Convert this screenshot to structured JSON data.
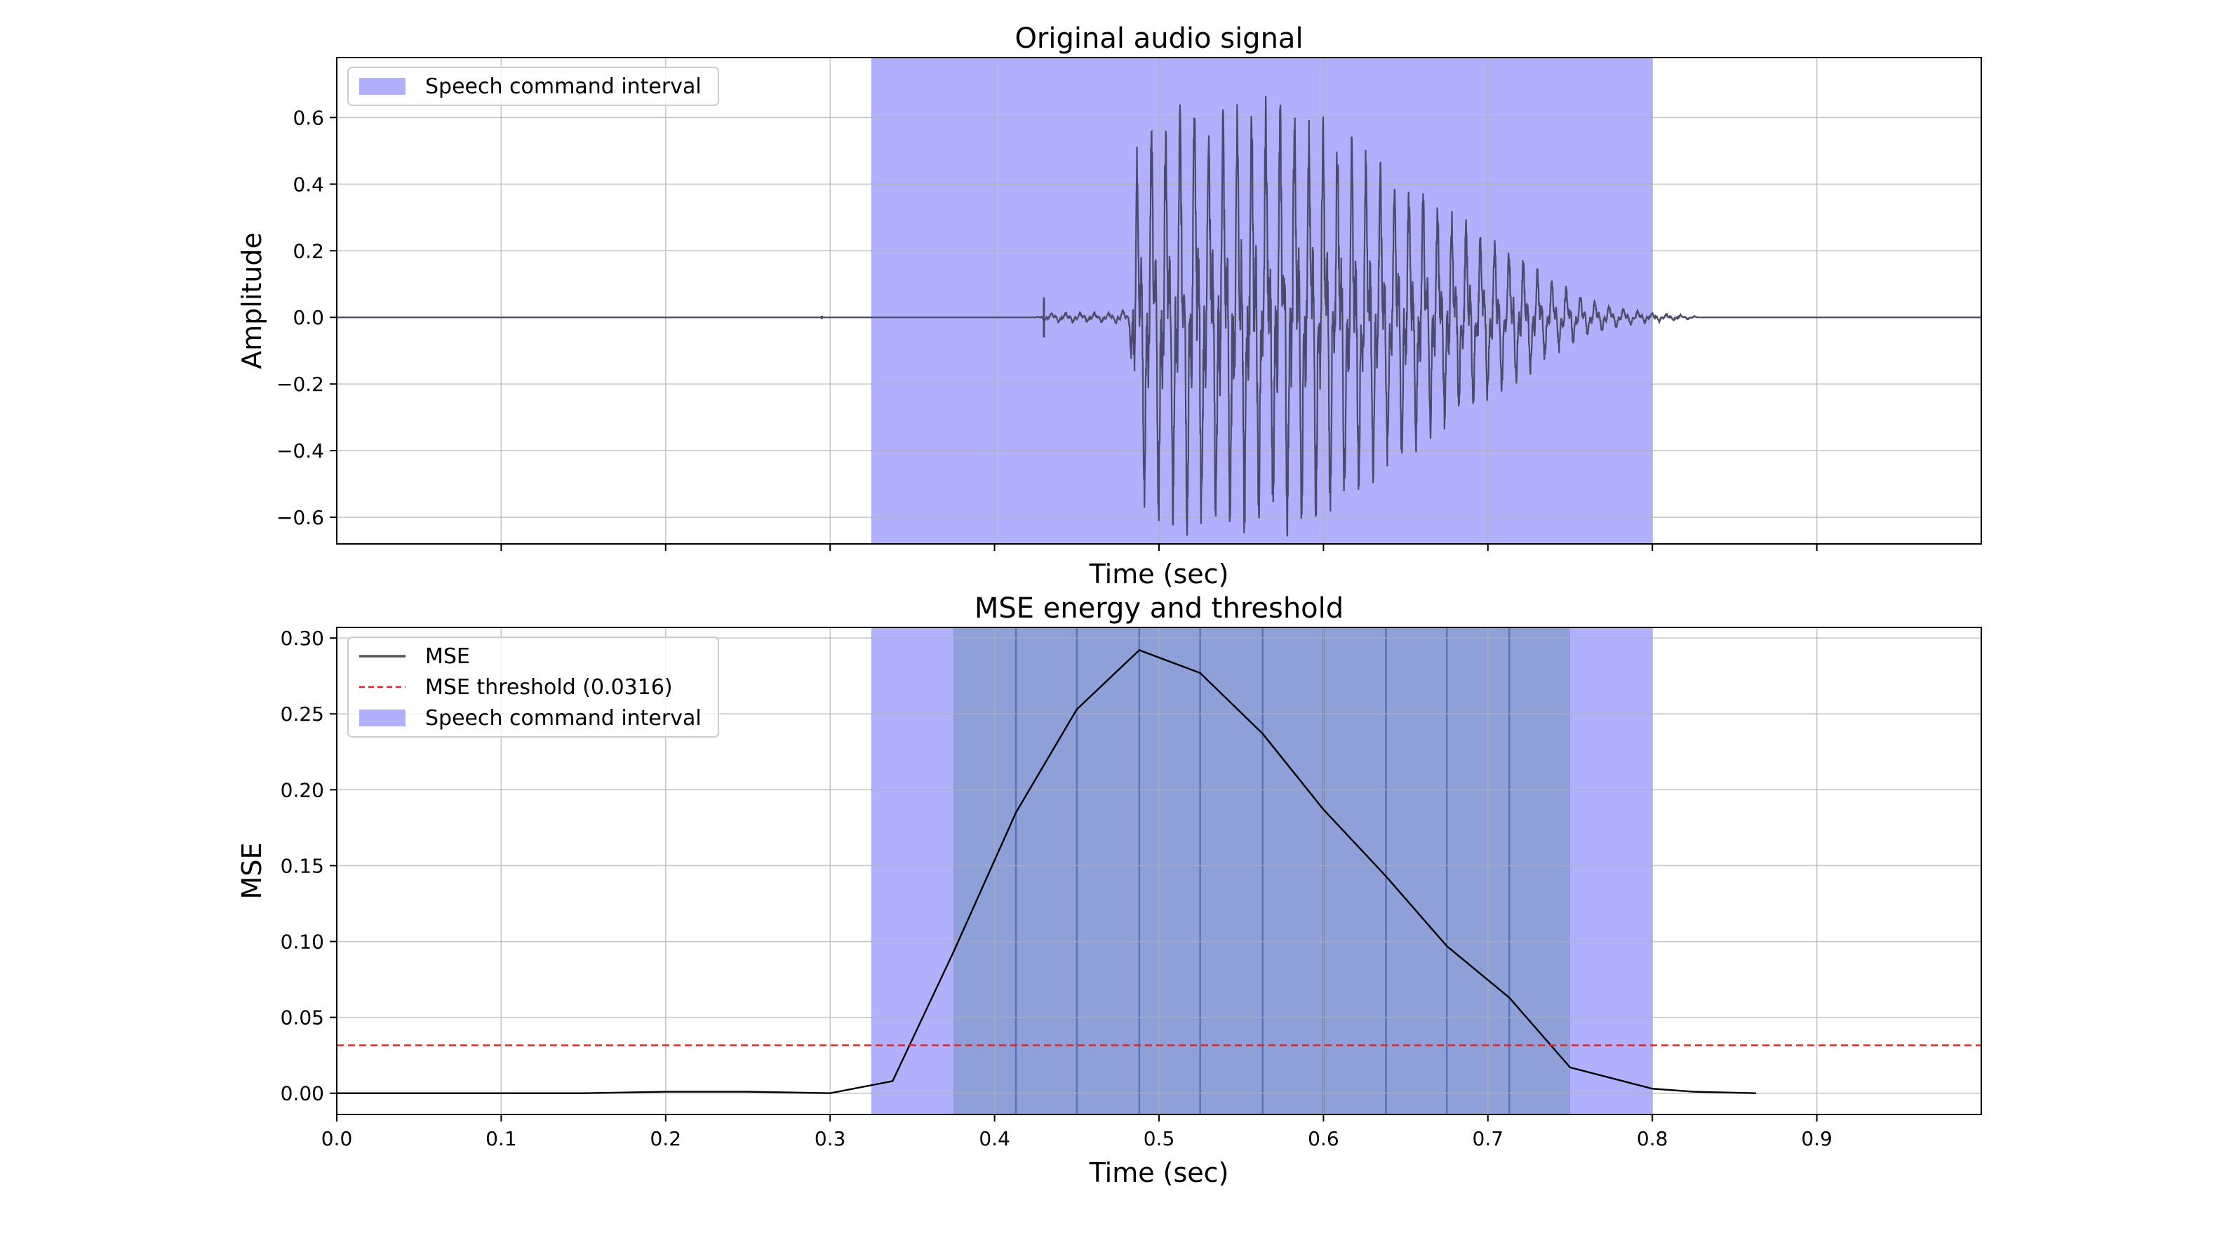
{
  "chart_data": [
    {
      "type": "line",
      "title": "Original audio signal",
      "xlabel": "Time (sec)",
      "ylabel": "Amplitude",
      "xlim": [
        0.0,
        1.0
      ],
      "ylim": [
        -0.68,
        0.78
      ],
      "yticks": [
        -0.6,
        -0.4,
        -0.2,
        0.0,
        0.2,
        0.4,
        0.6
      ],
      "ytick_labels": [
        "−0.6",
        "−0.4",
        "−0.2",
        "0.0",
        "0.2",
        "0.4",
        "0.6"
      ],
      "xticks": [
        0.1,
        0.2,
        0.3,
        0.4,
        0.5,
        0.6,
        0.7,
        0.8,
        0.9
      ],
      "grid": true,
      "legend": {
        "position": "top-left",
        "entries": [
          "Speech command interval"
        ]
      },
      "interval": {
        "name": "Speech command interval",
        "start": 0.325,
        "end": 0.8,
        "color": "#b0b0fc"
      },
      "signal": {
        "color": "#4a4a6a",
        "events": [
          {
            "t": 0.295,
            "amp": 0.005
          },
          {
            "t": 0.43,
            "amp": 0.06
          }
        ],
        "envelope": [
          [
            0.425,
            0.0
          ],
          [
            0.432,
            0.015
          ],
          [
            0.47,
            0.015
          ],
          [
            0.482,
            0.03
          ],
          [
            0.485,
            0.5
          ],
          [
            0.49,
            0.6
          ],
          [
            0.51,
            0.68
          ],
          [
            0.55,
            0.7
          ],
          [
            0.58,
            0.68
          ],
          [
            0.6,
            0.62
          ],
          [
            0.64,
            0.48
          ],
          [
            0.68,
            0.32
          ],
          [
            0.72,
            0.2
          ],
          [
            0.74,
            0.12
          ],
          [
            0.76,
            0.06
          ],
          [
            0.78,
            0.03
          ],
          [
            0.8,
            0.015
          ],
          [
            0.825,
            0.005
          ],
          [
            0.83,
            0.0
          ]
        ]
      }
    },
    {
      "type": "line",
      "title": "MSE energy and threshold",
      "xlabel": "Time (sec)",
      "ylabel": "MSE",
      "xlim": [
        0.0,
        1.0
      ],
      "ylim": [
        -0.014,
        0.307
      ],
      "yticks": [
        0.0,
        0.05,
        0.1,
        0.15,
        0.2,
        0.25,
        0.3
      ],
      "ytick_labels": [
        "0.00",
        "0.05",
        "0.10",
        "0.15",
        "0.20",
        "0.25",
        "0.30"
      ],
      "xticks": [
        0.0,
        0.1,
        0.2,
        0.3,
        0.4,
        0.5,
        0.6,
        0.7,
        0.8,
        0.9
      ],
      "xtick_labels": [
        "0.0",
        "0.1",
        "0.2",
        "0.3",
        "0.4",
        "0.5",
        "0.6",
        "0.7",
        "0.8",
        "0.9"
      ],
      "grid": true,
      "legend": {
        "position": "top-left",
        "entries": [
          "MSE",
          "MSE threshold (0.0316)",
          "Speech command interval"
        ]
      },
      "series": [
        {
          "name": "MSE",
          "color": "#000000",
          "x": [
            0.0,
            0.05,
            0.1,
            0.15,
            0.2,
            0.25,
            0.3,
            0.338,
            0.375,
            0.413,
            0.45,
            0.488,
            0.525,
            0.563,
            0.6,
            0.638,
            0.675,
            0.713,
            0.75,
            0.8,
            0.825,
            0.863
          ],
          "y": [
            0.0,
            0.0,
            0.0,
            0.0,
            0.001,
            0.001,
            0.0,
            0.008,
            0.093,
            0.185,
            0.253,
            0.292,
            0.277,
            0.237,
            0.187,
            0.143,
            0.097,
            0.063,
            0.017,
            0.003,
            0.001,
            0.0
          ]
        }
      ],
      "threshold": {
        "name": "MSE threshold (0.0316)",
        "value": 0.0316,
        "color": "#d62728"
      },
      "interval": {
        "name": "Speech command interval",
        "start": 0.325,
        "end": 0.8,
        "color": "#b0b0fc"
      },
      "overlay": {
        "start": 0.375,
        "end": 0.75,
        "color": "#8f9fd8",
        "lines": [
          0.413,
          0.45,
          0.488,
          0.525,
          0.563,
          0.6,
          0.638,
          0.675,
          0.713
        ],
        "line_color": "#5a73b8"
      }
    }
  ]
}
